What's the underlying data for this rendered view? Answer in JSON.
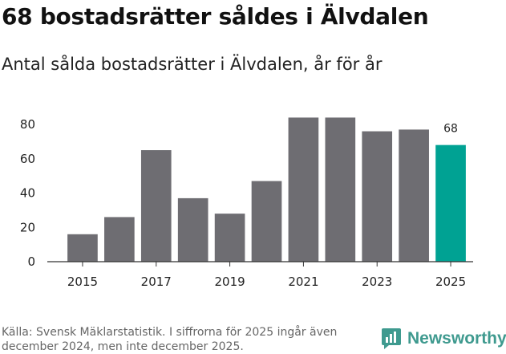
{
  "title": "68 bostadsrätter såldes i Älvdalen",
  "subtitle": "Antal sålda bostadsrätter i Älvdalen, år för år",
  "source": "Källa: Svensk Mäklarstatistik. I siffrorna för 2025 ingår även december 2024, men inte december 2025.",
  "brand": {
    "name": "Newsworthy",
    "icon": "bar-chart-logo-icon",
    "color": "#3f9a8f"
  },
  "colors": {
    "default_bar": "#6e6d72",
    "highlight_bar": "#00a293"
  },
  "chart_data": {
    "type": "bar",
    "title": "Antal sålda bostadsrätter i Älvdalen, år för år",
    "xlabel": "",
    "ylabel": "",
    "categories": [
      2015,
      2016,
      2017,
      2018,
      2019,
      2020,
      2021,
      2022,
      2023,
      2024,
      2025
    ],
    "values": [
      16,
      26,
      65,
      37,
      28,
      47,
      84,
      84,
      76,
      77,
      68
    ],
    "highlight_index": 10,
    "data_labels": [
      {
        "index": 10,
        "text": "68"
      }
    ],
    "ylim": [
      0,
      85
    ],
    "yticks": [
      0,
      20,
      40,
      60,
      80
    ],
    "xtick_labels": [
      "2015",
      "2017",
      "2019",
      "2021",
      "2023",
      "2025"
    ],
    "grid": false
  }
}
